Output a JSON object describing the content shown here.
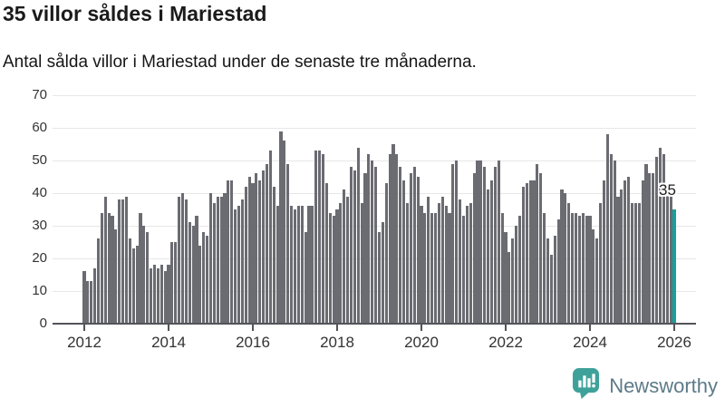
{
  "header": {
    "title": "35 villor såldes i Mariestad",
    "subtitle": "Antal sålda villor i Mariestad under de senaste tre månaderna."
  },
  "chart_data": {
    "type": "bar",
    "title": "35 villor såldes i Mariestad",
    "subtitle": "Antal sålda villor i Mariestad under de senaste tre månaderna.",
    "x_start": "2012-01",
    "x_end": "2026-01",
    "x_unit": "month",
    "ylim": [
      0,
      70
    ],
    "y_ticks": [
      0,
      10,
      20,
      30,
      40,
      50,
      60,
      70
    ],
    "x_tick_labels": [
      "2012",
      "2014",
      "2016",
      "2018",
      "2020",
      "2022",
      "2024",
      "2026"
    ],
    "grid": true,
    "legend": false,
    "bar_color": "#6b6b72",
    "highlight": {
      "index": 168,
      "label": "35",
      "color": "#12a39c"
    },
    "values": [
      16,
      13,
      13,
      17,
      26,
      34,
      39,
      34,
      33,
      29,
      38,
      38,
      39,
      26,
      23,
      24,
      34,
      30,
      28,
      17,
      18,
      17,
      18,
      16,
      18,
      25,
      25,
      39,
      40,
      38,
      31,
      30,
      33,
      24,
      28,
      27,
      40,
      37,
      39,
      39,
      40,
      44,
      44,
      35,
      36,
      38,
      42,
      45,
      43,
      46,
      44,
      47,
      49,
      53,
      42,
      36,
      59,
      56,
      49,
      36,
      35,
      36,
      36,
      28,
      36,
      36,
      53,
      53,
      52,
      43,
      34,
      33,
      35,
      37,
      41,
      39,
      48,
      47,
      54,
      37,
      46,
      52,
      50,
      48,
      28,
      31,
      43,
      52,
      55,
      52,
      48,
      44,
      37,
      46,
      48,
      45,
      36,
      34,
      39,
      34,
      34,
      37,
      39,
      36,
      34,
      49,
      50,
      38,
      33,
      36,
      37,
      46,
      50,
      50,
      48,
      41,
      44,
      48,
      50,
      34,
      28,
      22,
      26,
      30,
      33,
      42,
      43,
      44,
      44,
      49,
      46,
      34,
      26,
      21,
      27,
      32,
      41,
      40,
      37,
      34,
      34,
      33,
      34,
      33,
      33,
      29,
      26,
      37,
      44,
      58,
      52,
      50,
      39,
      41,
      44,
      45,
      37,
      37,
      37,
      44,
      49,
      46,
      46,
      51,
      54,
      52,
      41,
      40,
      35
    ]
  },
  "footer": {
    "brand": "Newsworthy",
    "logo_icon": "newsworthy-pin-barchart-icon",
    "logo_color": "#3fa29a"
  }
}
